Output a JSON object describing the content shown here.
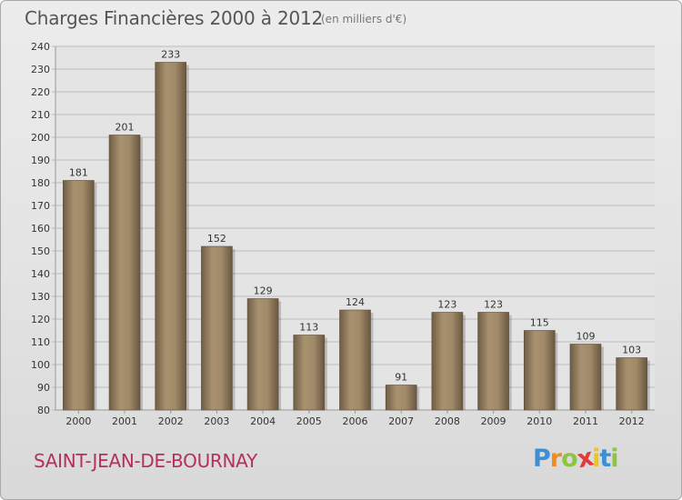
{
  "header": {
    "title": "Charges Financières 2000 à 2012",
    "subtitle": "(en milliers d'€)"
  },
  "footer": {
    "town": "SAINT-JEAN-DE-BOURNAY",
    "logo": {
      "letters": [
        "P",
        "r",
        "o",
        "x",
        "i",
        "t",
        "i"
      ],
      "colors": [
        "#3d8fd1",
        "#f08c1a",
        "#8cc63f",
        "#e23a3a",
        "#f0c419",
        "#3d8fd1",
        "#8cc63f"
      ]
    }
  },
  "colors": {
    "bar": "#8f7a5e",
    "grid": "#bbbbbb",
    "axis_text": "#333333"
  },
  "chart_data": {
    "type": "bar",
    "categories": [
      "2000",
      "2001",
      "2002",
      "2003",
      "2004",
      "2005",
      "2006",
      "2007",
      "2008",
      "2009",
      "2010",
      "2011",
      "2012"
    ],
    "values": [
      181,
      201,
      233,
      152,
      129,
      113,
      124,
      91,
      123,
      123,
      115,
      109,
      103
    ],
    "ylim": [
      80,
      240
    ],
    "ytick_step": 10,
    "grid": true,
    "title": "Charges Financières 2000 à 2012",
    "subtitle": "(en milliers d'€)",
    "xlabel": "",
    "ylabel": ""
  }
}
